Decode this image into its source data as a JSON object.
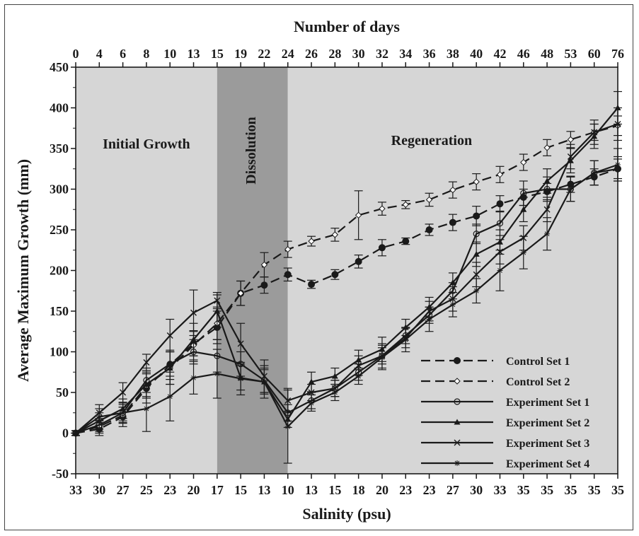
{
  "chart_data": {
    "type": "line",
    "title": "",
    "xlabel": "Salinity (psu)",
    "x2label": "Number of days",
    "ylabel": "Average Maximum Growth (mm)",
    "ylim": [
      -50,
      450
    ],
    "yticks": [
      -50,
      0,
      50,
      100,
      150,
      200,
      250,
      300,
      350,
      400,
      450
    ],
    "days": [
      "0",
      "4",
      "6",
      "8",
      "10",
      "13",
      "15",
      "19",
      "22",
      "24",
      "26",
      "28",
      "30",
      "32",
      "34",
      "36",
      "38",
      "40",
      "42",
      "46",
      "48",
      "53",
      "60",
      "76"
    ],
    "salinity": [
      "33",
      "30",
      "27",
      "25",
      "23",
      "20",
      "17",
      "15",
      "13",
      "10",
      "13",
      "15",
      "18",
      "20",
      "23",
      "23",
      "27",
      "30",
      "33",
      "35",
      "35",
      "35",
      "35",
      "35"
    ],
    "regions": [
      {
        "label": "Initial Growth",
        "start": 0,
        "end": 6,
        "color": "#d6d6d6"
      },
      {
        "label": "Dissolution",
        "start": 6,
        "end": 9,
        "color": "#9b9b9b"
      },
      {
        "label": "Regeneration",
        "start": 9,
        "end": 23,
        "color": "#d6d6d6"
      }
    ],
    "legend_position": "bottom-right",
    "series": [
      {
        "name": "Control Set 1",
        "dash": "dashed",
        "marker": "filled-circle",
        "points": [
          [
            0,
            0
          ],
          [
            1,
            5
          ],
          [
            2,
            20
          ],
          [
            3,
            55
          ],
          [
            4,
            84
          ],
          [
            5,
            110
          ],
          [
            6,
            130
          ],
          [
            7,
            172
          ],
          [
            8,
            182
          ],
          [
            9,
            195
          ],
          [
            10,
            183
          ],
          [
            11,
            195
          ],
          [
            12,
            211
          ],
          [
            13,
            228
          ],
          [
            14,
            236
          ],
          [
            15,
            250
          ],
          [
            16,
            259
          ],
          [
            17,
            267
          ],
          [
            18,
            282
          ],
          [
            19,
            290
          ],
          [
            20,
            297
          ],
          [
            21,
            306
          ],
          [
            22,
            315
          ],
          [
            23,
            325
          ]
        ],
        "errors": [
          3,
          8,
          12,
          18,
          18,
          15,
          20,
          15,
          10,
          8,
          5,
          6,
          8,
          10,
          4,
          7,
          10,
          12,
          10,
          10,
          10,
          10,
          10,
          12
        ]
      },
      {
        "name": "Control Set 2",
        "dash": "dashed",
        "marker": "open-diamond",
        "points": [
          [
            0,
            0
          ],
          [
            1,
            8
          ],
          [
            2,
            22
          ],
          [
            3,
            58
          ],
          [
            4,
            80
          ],
          [
            5,
            108
          ],
          [
            6,
            135
          ],
          [
            7,
            172
          ],
          [
            8,
            207
          ],
          [
            9,
            226
          ],
          [
            10,
            236
          ],
          [
            11,
            244
          ],
          [
            12,
            268
          ],
          [
            13,
            276
          ],
          [
            14,
            281
          ],
          [
            15,
            287
          ],
          [
            16,
            299
          ],
          [
            17,
            309
          ],
          [
            18,
            318
          ],
          [
            19,
            333
          ],
          [
            20,
            351
          ],
          [
            21,
            361
          ],
          [
            22,
            370
          ],
          [
            23,
            378
          ]
        ],
        "errors": [
          3,
          8,
          10,
          15,
          20,
          18,
          20,
          15,
          15,
          10,
          6,
          8,
          30,
          8,
          5,
          8,
          10,
          10,
          10,
          10,
          10,
          10,
          10,
          12
        ]
      },
      {
        "name": "Experiment Set 1",
        "dash": "solid",
        "marker": "open-circle",
        "points": [
          [
            0,
            0
          ],
          [
            1,
            10
          ],
          [
            2,
            25
          ],
          [
            3,
            65
          ],
          [
            4,
            85
          ],
          [
            5,
            100
          ],
          [
            6,
            95
          ],
          [
            7,
            85
          ],
          [
            8,
            65
          ],
          [
            9,
            25
          ],
          [
            10,
            40
          ],
          [
            11,
            55
          ],
          [
            12,
            75
          ],
          [
            13,
            95
          ],
          [
            14,
            120
          ],
          [
            15,
            145
          ],
          [
            16,
            175
          ],
          [
            17,
            245
          ],
          [
            18,
            258
          ],
          [
            19,
            295
          ],
          [
            20,
            300
          ],
          [
            21,
            300
          ],
          [
            22,
            320
          ],
          [
            23,
            325
          ]
        ],
        "errors": [
          3,
          8,
          10,
          15,
          15,
          15,
          20,
          15,
          15,
          10,
          10,
          10,
          10,
          10,
          10,
          10,
          10,
          12,
          15,
          15,
          15,
          15,
          15,
          15
        ]
      },
      {
        "name": "Experiment Set 2",
        "dash": "solid",
        "marker": "filled-triangle",
        "points": [
          [
            0,
            0
          ],
          [
            1,
            15
          ],
          [
            2,
            30
          ],
          [
            3,
            60
          ],
          [
            4,
            80
          ],
          [
            5,
            115
          ],
          [
            6,
            150
          ],
          [
            7,
            68
          ],
          [
            8,
            63
          ],
          [
            9,
            17
          ],
          [
            10,
            63
          ],
          [
            11,
            70
          ],
          [
            12,
            90
          ],
          [
            13,
            103
          ],
          [
            14,
            130
          ],
          [
            15,
            155
          ],
          [
            16,
            185
          ],
          [
            17,
            220
          ],
          [
            18,
            235
          ],
          [
            19,
            275
          ],
          [
            20,
            310
          ],
          [
            21,
            335
          ],
          [
            22,
            365
          ],
          [
            23,
            400
          ]
        ],
        "errors": [
          3,
          10,
          12,
          15,
          20,
          20,
          20,
          15,
          15,
          10,
          12,
          10,
          12,
          15,
          10,
          12,
          12,
          15,
          15,
          15,
          15,
          15,
          15,
          20
        ]
      },
      {
        "name": "Experiment Set 3",
        "dash": "solid",
        "marker": "x",
        "points": [
          [
            0,
            0
          ],
          [
            1,
            25
          ],
          [
            2,
            50
          ],
          [
            3,
            87
          ],
          [
            4,
            120
          ],
          [
            5,
            148
          ],
          [
            6,
            163
          ],
          [
            7,
            110
          ],
          [
            8,
            70
          ],
          [
            9,
            40
          ],
          [
            10,
            50
          ],
          [
            11,
            55
          ],
          [
            12,
            83
          ],
          [
            13,
            95
          ],
          [
            14,
            117
          ],
          [
            15,
            150
          ],
          [
            16,
            165
          ],
          [
            17,
            195
          ],
          [
            18,
            223
          ],
          [
            19,
            240
          ],
          [
            20,
            275
          ],
          [
            21,
            340
          ],
          [
            22,
            370
          ],
          [
            23,
            380
          ]
        ],
        "errors": [
          3,
          10,
          12,
          10,
          20,
          28,
          10,
          25,
          20,
          15,
          10,
          10,
          12,
          15,
          12,
          12,
          15,
          15,
          15,
          15,
          15,
          15,
          15,
          20
        ]
      },
      {
        "name": "Experiment Set 4",
        "dash": "solid",
        "marker": "star",
        "points": [
          [
            0,
            0
          ],
          [
            1,
            20
          ],
          [
            2,
            25
          ],
          [
            3,
            30
          ],
          [
            4,
            45
          ],
          [
            5,
            68
          ],
          [
            6,
            73
          ],
          [
            7,
            67
          ],
          [
            8,
            63
          ],
          [
            9,
            8
          ],
          [
            10,
            37
          ],
          [
            11,
            50
          ],
          [
            12,
            70
          ],
          [
            13,
            93
          ],
          [
            14,
            115
          ],
          [
            15,
            140
          ],
          [
            16,
            158
          ],
          [
            17,
            175
          ],
          [
            18,
            200
          ],
          [
            19,
            222
          ],
          [
            20,
            245
          ],
          [
            21,
            300
          ],
          [
            22,
            320
          ],
          [
            23,
            330
          ]
        ],
        "errors": [
          3,
          10,
          12,
          28,
          30,
          20,
          30,
          20,
          20,
          45,
          10,
          10,
          10,
          15,
          15,
          15,
          15,
          15,
          25,
          20,
          20,
          15,
          15,
          20
        ]
      }
    ]
  }
}
